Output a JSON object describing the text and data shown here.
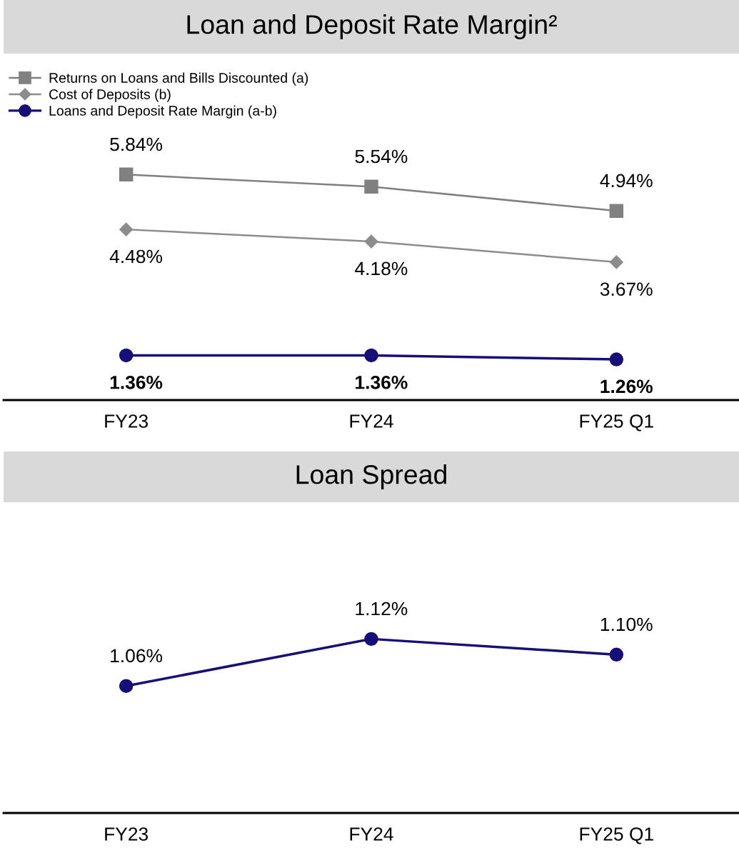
{
  "chart_data": [
    {
      "type": "line",
      "title": "Loan and Deposit Rate Margin²",
      "categories": [
        "FY23",
        "FY24",
        "FY25 Q1"
      ],
      "legend": "top left",
      "tick_labels": "x",
      "series": [
        {
          "name": "Returns on Loans and Bills Discounted (a)",
          "color": "#808080",
          "marker": "square",
          "values": [
            5.84,
            5.54,
            4.94
          ],
          "value_labels": [
            "5.84%",
            "5.54%",
            "4.94%"
          ]
        },
        {
          "name": "Cost of Deposits (b)",
          "color": "#8c8c8c",
          "marker": "diamond",
          "values": [
            4.48,
            4.18,
            3.67
          ],
          "value_labels": [
            "4.48%",
            "4.18%",
            "3.67%"
          ]
        },
        {
          "name": "Loans and Deposit Rate Margin (a-b)",
          "color": "#170f78",
          "marker": "circle",
          "values": [
            1.36,
            1.36,
            1.26
          ],
          "value_labels": [
            "1.36%",
            "1.36%",
            "1.26%"
          ]
        }
      ]
    },
    {
      "type": "line",
      "title": "Loan Spread",
      "categories": [
        "FY23",
        "FY24",
        "FY25 Q1"
      ],
      "tick_labels": "x",
      "series": [
        {
          "color": "#170f78",
          "marker": "circle",
          "values": [
            1.06,
            1.12,
            1.1
          ],
          "value_labels": [
            "1.06%",
            "1.12%",
            "1.10%"
          ]
        }
      ]
    }
  ]
}
